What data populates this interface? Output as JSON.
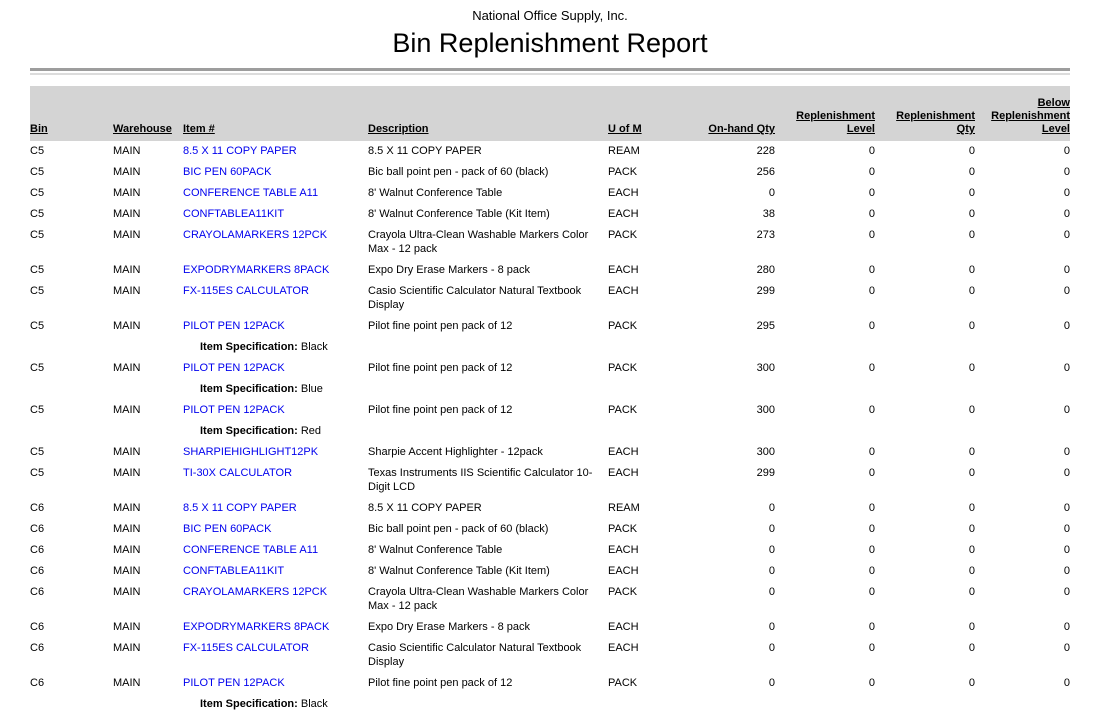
{
  "report": {
    "company": "National Office Supply, Inc.",
    "title": "Bin Replenishment Report"
  },
  "colors": {
    "link": "#0000ee",
    "header_band": "#d4d4d4",
    "rule_dark": "#9d9d9d",
    "rule_light": "#dcdcdc",
    "text": "#000000"
  },
  "table": {
    "headers": [
      {
        "label": "Bin",
        "align": "left"
      },
      {
        "label": "Warehouse",
        "align": "left"
      },
      {
        "label": "Item #",
        "align": "left"
      },
      {
        "label": "Description",
        "align": "left"
      },
      {
        "label": "U of M",
        "align": "left"
      },
      {
        "label": "On-hand Qty",
        "align": "right"
      },
      {
        "label": "Replenishment Level",
        "align": "right"
      },
      {
        "label": "Replenishment Qty",
        "align": "right"
      },
      {
        "label": "Below Replenishment Level",
        "align": "right"
      }
    ],
    "spec_label": "Item Specification:",
    "rows": [
      {
        "bin": "C5",
        "warehouse": "MAIN",
        "item": "8.5 X 11 COPY PAPER",
        "description": "8.5 X 11 COPY PAPER",
        "uom": "REAM",
        "on_hand": "228",
        "repl_level": "0",
        "repl_qty": "0",
        "below_repl": "0",
        "spec": null
      },
      {
        "bin": "C5",
        "warehouse": "MAIN",
        "item": "BIC PEN 60PACK",
        "description": "Bic ball point pen - pack of 60 (black)",
        "uom": "PACK",
        "on_hand": "256",
        "repl_level": "0",
        "repl_qty": "0",
        "below_repl": "0",
        "spec": null
      },
      {
        "bin": "C5",
        "warehouse": "MAIN",
        "item": "CONFERENCE TABLE A11",
        "description": "8' Walnut Conference Table",
        "uom": "EACH",
        "on_hand": "0",
        "repl_level": "0",
        "repl_qty": "0",
        "below_repl": "0",
        "spec": null
      },
      {
        "bin": "C5",
        "warehouse": "MAIN",
        "item": "CONFTABLEA11KIT",
        "description": "8' Walnut Conference Table (Kit Item)",
        "uom": "EACH",
        "on_hand": "38",
        "repl_level": "0",
        "repl_qty": "0",
        "below_repl": "0",
        "spec": null
      },
      {
        "bin": "C5",
        "warehouse": "MAIN",
        "item": "CRAYOLAMARKERS 12PCK",
        "description": "Crayola Ultra-Clean Washable Markers Color Max - 12 pack",
        "uom": "PACK",
        "on_hand": "273",
        "repl_level": "0",
        "repl_qty": "0",
        "below_repl": "0",
        "spec": null
      },
      {
        "bin": "C5",
        "warehouse": "MAIN",
        "item": "EXPODRYMARKERS 8PACK",
        "description": "Expo Dry Erase Markers - 8 pack",
        "uom": "EACH",
        "on_hand": "280",
        "repl_level": "0",
        "repl_qty": "0",
        "below_repl": "0",
        "spec": null
      },
      {
        "bin": "C5",
        "warehouse": "MAIN",
        "item": "FX-115ES CALCULATOR",
        "description": "Casio Scientific Calculator Natural Textbook Display",
        "uom": "EACH",
        "on_hand": "299",
        "repl_level": "0",
        "repl_qty": "0",
        "below_repl": "0",
        "spec": null
      },
      {
        "bin": "C5",
        "warehouse": "MAIN",
        "item": "PILOT PEN 12PACK",
        "description": "Pilot fine point pen pack of 12",
        "uom": "PACK",
        "on_hand": "295",
        "repl_level": "0",
        "repl_qty": "0",
        "below_repl": "0",
        "spec": "Black"
      },
      {
        "bin": "C5",
        "warehouse": "MAIN",
        "item": "PILOT PEN 12PACK",
        "description": "Pilot fine point pen pack of 12",
        "uom": "PACK",
        "on_hand": "300",
        "repl_level": "0",
        "repl_qty": "0",
        "below_repl": "0",
        "spec": "Blue"
      },
      {
        "bin": "C5",
        "warehouse": "MAIN",
        "item": "PILOT PEN 12PACK",
        "description": "Pilot fine point pen pack of 12",
        "uom": "PACK",
        "on_hand": "300",
        "repl_level": "0",
        "repl_qty": "0",
        "below_repl": "0",
        "spec": "Red"
      },
      {
        "bin": "C5",
        "warehouse": "MAIN",
        "item": "SHARPIEHIGHLIGHT12PK",
        "description": "Sharpie Accent Highlighter - 12pack",
        "uom": "EACH",
        "on_hand": "300",
        "repl_level": "0",
        "repl_qty": "0",
        "below_repl": "0",
        "spec": null
      },
      {
        "bin": "C5",
        "warehouse": "MAIN",
        "item": "TI-30X CALCULATOR",
        "description": "Texas Instruments IIS Scientific Calculator 10-Digit LCD",
        "uom": "EACH",
        "on_hand": "299",
        "repl_level": "0",
        "repl_qty": "0",
        "below_repl": "0",
        "spec": null
      },
      {
        "bin": "C6",
        "warehouse": "MAIN",
        "item": "8.5 X 11 COPY PAPER",
        "description": "8.5 X 11 COPY PAPER",
        "uom": "REAM",
        "on_hand": "0",
        "repl_level": "0",
        "repl_qty": "0",
        "below_repl": "0",
        "spec": null
      },
      {
        "bin": "C6",
        "warehouse": "MAIN",
        "item": "BIC PEN 60PACK",
        "description": "Bic ball point pen - pack of 60 (black)",
        "uom": "PACK",
        "on_hand": "0",
        "repl_level": "0",
        "repl_qty": "0",
        "below_repl": "0",
        "spec": null
      },
      {
        "bin": "C6",
        "warehouse": "MAIN",
        "item": "CONFERENCE TABLE A11",
        "description": "8' Walnut Conference Table",
        "uom": "EACH",
        "on_hand": "0",
        "repl_level": "0",
        "repl_qty": "0",
        "below_repl": "0",
        "spec": null
      },
      {
        "bin": "C6",
        "warehouse": "MAIN",
        "item": "CONFTABLEA11KIT",
        "description": "8' Walnut Conference Table (Kit Item)",
        "uom": "EACH",
        "on_hand": "0",
        "repl_level": "0",
        "repl_qty": "0",
        "below_repl": "0",
        "spec": null
      },
      {
        "bin": "C6",
        "warehouse": "MAIN",
        "item": "CRAYOLAMARKERS 12PCK",
        "description": "Crayola Ultra-Clean Washable Markers Color Max - 12 pack",
        "uom": "PACK",
        "on_hand": "0",
        "repl_level": "0",
        "repl_qty": "0",
        "below_repl": "0",
        "spec": null
      },
      {
        "bin": "C6",
        "warehouse": "MAIN",
        "item": "EXPODRYMARKERS 8PACK",
        "description": "Expo Dry Erase Markers - 8 pack",
        "uom": "EACH",
        "on_hand": "0",
        "repl_level": "0",
        "repl_qty": "0",
        "below_repl": "0",
        "spec": null
      },
      {
        "bin": "C6",
        "warehouse": "MAIN",
        "item": "FX-115ES CALCULATOR",
        "description": "Casio Scientific Calculator Natural Textbook Display",
        "uom": "EACH",
        "on_hand": "0",
        "repl_level": "0",
        "repl_qty": "0",
        "below_repl": "0",
        "spec": null
      },
      {
        "bin": "C6",
        "warehouse": "MAIN",
        "item": "PILOT PEN 12PACK",
        "description": "Pilot fine point pen pack of 12",
        "uom": "PACK",
        "on_hand": "0",
        "repl_level": "0",
        "repl_qty": "0",
        "below_repl": "0",
        "spec": "Black"
      }
    ]
  }
}
